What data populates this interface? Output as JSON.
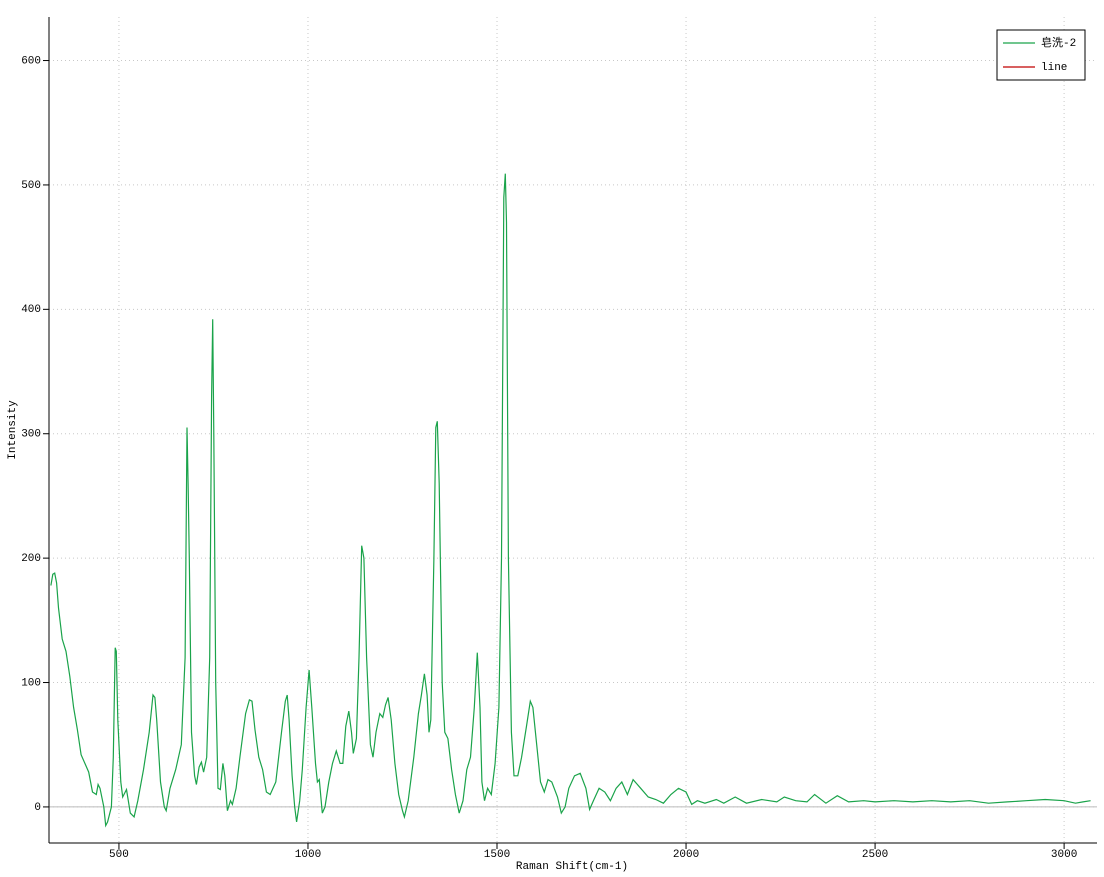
{
  "chart_data": {
    "type": "line",
    "xlabel": "Raman Shift(cm-1)",
    "ylabel": "Intensity",
    "xlim": [
      315,
      3087
    ],
    "ylim": [
      -29,
      635
    ],
    "xticks": [
      500,
      1000,
      1500,
      2000,
      2500,
      3000
    ],
    "yticks": [
      0,
      100,
      200,
      300,
      400,
      500,
      600
    ],
    "grid": true,
    "legend": "upper right",
    "series": [
      {
        "name": "皂洗-2",
        "color": "#1aa34a",
        "x": [
          320,
          325,
          330,
          335,
          340,
          350,
          360,
          370,
          380,
          390,
          400,
          410,
          420,
          430,
          440,
          445,
          450,
          460,
          465,
          470,
          480,
          485,
          490,
          493,
          497,
          505,
          510,
          520,
          530,
          540,
          550,
          565,
          580,
          590,
          595,
          600,
          610,
          620,
          625,
          635,
          650,
          665,
          675,
          680,
          683,
          686,
          692,
          700,
          705,
          712,
          718,
          724,
          732,
          740,
          745,
          748,
          751,
          756,
          762,
          768,
          775,
          780,
          787,
          795,
          800,
          810,
          820,
          835,
          845,
          852,
          860,
          870,
          880,
          890,
          900,
          915,
          930,
          940,
          945,
          950,
          958,
          965,
          970,
          978,
          985,
          995,
          1003,
          1010,
          1020,
          1025,
          1030,
          1038,
          1045,
          1055,
          1065,
          1075,
          1085,
          1092,
          1100,
          1108,
          1115,
          1120,
          1128,
          1135,
          1142,
          1148,
          1155,
          1165,
          1172,
          1180,
          1190,
          1198,
          1205,
          1212,
          1220,
          1230,
          1240,
          1250,
          1255,
          1265,
          1280,
          1292,
          1300,
          1308,
          1315,
          1320,
          1325,
          1333,
          1338,
          1342,
          1347,
          1355,
          1362,
          1370,
          1380,
          1390,
          1400,
          1410,
          1420,
          1430,
          1440,
          1448,
          1455,
          1460,
          1467,
          1475,
          1485,
          1495,
          1505,
          1512,
          1518,
          1522,
          1525,
          1530,
          1538,
          1545,
          1555,
          1565,
          1578,
          1588,
          1595,
          1605,
          1615,
          1625,
          1635,
          1645,
          1660,
          1670,
          1680,
          1690,
          1705,
          1720,
          1735,
          1745,
          1755,
          1770,
          1785,
          1800,
          1815,
          1830,
          1845,
          1860,
          1880,
          1900,
          1920,
          1940,
          1960,
          1980,
          2000,
          2015,
          2030,
          2050,
          2080,
          2100,
          2130,
          2160,
          2200,
          2240,
          2260,
          2290,
          2320,
          2340,
          2370,
          2400,
          2430,
          2470,
          2500,
          2550,
          2600,
          2650,
          2700,
          2750,
          2800,
          2850,
          2900,
          2950,
          3000,
          3030,
          3050,
          3070
        ],
        "values": [
          178,
          187,
          188,
          180,
          160,
          135,
          125,
          105,
          80,
          62,
          42,
          35,
          28,
          12,
          10,
          18,
          15,
          0,
          -15,
          -12,
          0,
          40,
          128,
          125,
          70,
          20,
          8,
          14,
          -5,
          -8,
          5,
          30,
          60,
          90,
          88,
          70,
          20,
          0,
          -3,
          15,
          30,
          50,
          120,
          305,
          260,
          200,
          60,
          25,
          18,
          32,
          36,
          28,
          40,
          120,
          330,
          392,
          300,
          100,
          15,
          14,
          35,
          25,
          -3,
          5,
          2,
          15,
          40,
          75,
          86,
          85,
          62,
          40,
          30,
          12,
          10,
          20,
          60,
          85,
          90,
          70,
          25,
          0,
          -12,
          5,
          30,
          80,
          110,
          80,
          35,
          20,
          22,
          -5,
          0,
          20,
          35,
          45,
          35,
          35,
          65,
          77,
          60,
          43,
          55,
          120,
          210,
          200,
          120,
          50,
          40,
          60,
          75,
          72,
          82,
          88,
          70,
          35,
          10,
          -3,
          -8,
          5,
          40,
          75,
          90,
          107,
          90,
          60,
          70,
          200,
          305,
          310,
          260,
          100,
          60,
          55,
          30,
          10,
          -5,
          5,
          30,
          40,
          80,
          124,
          80,
          20,
          5,
          15,
          10,
          35,
          80,
          200,
          490,
          509,
          470,
          200,
          60,
          25,
          25,
          40,
          65,
          85,
          80,
          50,
          20,
          12,
          22,
          20,
          8,
          -5,
          0,
          15,
          25,
          27,
          15,
          -2,
          5,
          15,
          12,
          5,
          15,
          20,
          10,
          22,
          15,
          8,
          6,
          3,
          10,
          15,
          12,
          2,
          5,
          3,
          6,
          3,
          8,
          3,
          6,
          4,
          8,
          5,
          4,
          10,
          3,
          9,
          4,
          5,
          4,
          5,
          4,
          5,
          4,
          5,
          3,
          4,
          5,
          6,
          5,
          3,
          4,
          5
        ]
      },
      {
        "name": "line",
        "color": "#c00000",
        "x": [],
        "values": []
      }
    ]
  }
}
